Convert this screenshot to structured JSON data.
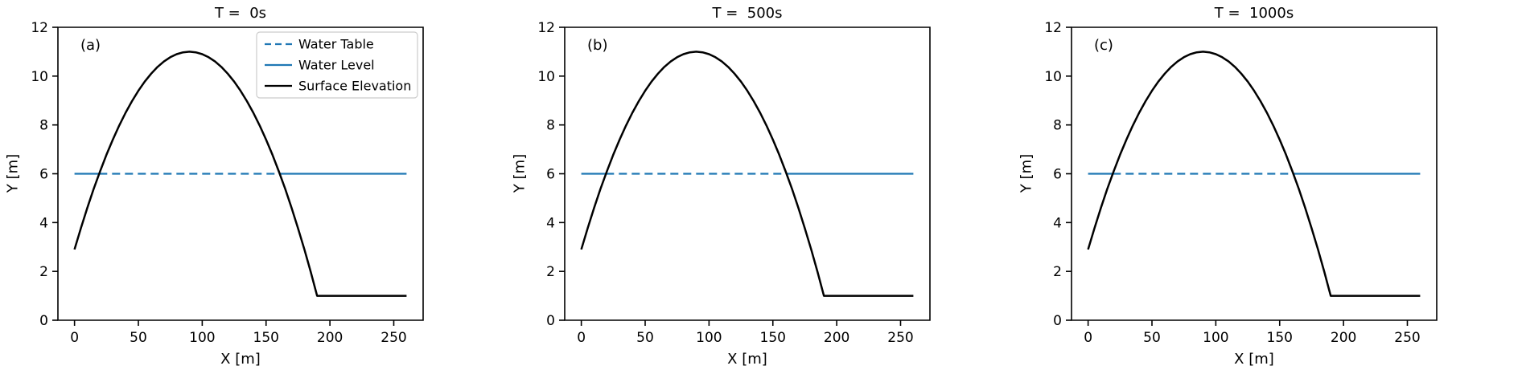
{
  "style": {
    "background": "#ffffff",
    "axis_color": "#000000",
    "water_color": "#1f77b4",
    "surface_color": "#000000",
    "legend_edge_color": "#cccccc"
  },
  "legend": {
    "items": [
      {
        "label": "Water Table",
        "color": "#1f77b4",
        "style": "dashed"
      },
      {
        "label": "Water Level",
        "color": "#1f77b4",
        "style": "solid"
      },
      {
        "label": "Surface Elevation",
        "color": "#000000",
        "style": "solid"
      }
    ]
  },
  "chart_data": [
    {
      "type": "line",
      "title": "T =  0s",
      "panel_label": "(a)",
      "xlabel": "X [m]",
      "ylabel": "Y [m]",
      "xlim": [
        -13,
        273
      ],
      "ylim": [
        0,
        12
      ],
      "xticks": [
        0,
        50,
        100,
        150,
        200,
        250
      ],
      "yticks": [
        0,
        2,
        4,
        6,
        8,
        10,
        12
      ],
      "show_legend": true,
      "legend_position": "upper right",
      "grid": false,
      "series": [
        {
          "name": "Water Table",
          "color": "#1f77b4",
          "style": "dashed",
          "width": 2.2,
          "segments": [
            {
              "x": [
                19.3,
                160.7
              ],
              "y": [
                6,
                6
              ]
            }
          ]
        },
        {
          "name": "Water Level",
          "color": "#1f77b4",
          "style": "solid",
          "width": 2.2,
          "segments": [
            {
              "x": [
                0,
                19.3
              ],
              "y": [
                6,
                6
              ]
            },
            {
              "x": [
                160.7,
                260
              ],
              "y": [
                6,
                6
              ]
            }
          ]
        },
        {
          "name": "Surface Elevation",
          "color": "#000000",
          "style": "solid",
          "width": 2.5,
          "segments": [
            {
              "x": [
                0,
                5,
                10,
                15,
                20,
                25,
                30,
                35,
                40,
                45,
                50,
                55,
                60,
                65,
                70,
                75,
                80,
                85,
                90,
                95,
                100,
                105,
                110,
                115,
                120,
                125,
                130,
                135,
                140,
                145,
                150,
                155,
                160,
                165,
                170,
                175,
                180,
                185,
                190,
                260
              ],
              "y": [
                2.9,
                3.775,
                4.6,
                5.375,
                6.1,
                6.775,
                7.4,
                7.975,
                8.5,
                8.975,
                9.4,
                9.775,
                10.1,
                10.375,
                10.6,
                10.775,
                10.9,
                10.975,
                11,
                10.975,
                10.9,
                10.775,
                10.6,
                10.375,
                10.1,
                9.775,
                9.4,
                8.975,
                8.5,
                7.975,
                7.4,
                6.775,
                6.1,
                5.375,
                4.6,
                3.775,
                2.9,
                1.975,
                1,
                1
              ]
            }
          ]
        }
      ]
    },
    {
      "type": "line",
      "title": "T =  500s",
      "panel_label": "(b)",
      "xlabel": "X [m]",
      "ylabel": "Y [m]",
      "xlim": [
        -13,
        273
      ],
      "ylim": [
        0,
        12
      ],
      "xticks": [
        0,
        50,
        100,
        150,
        200,
        250
      ],
      "yticks": [
        0,
        2,
        4,
        6,
        8,
        10,
        12
      ],
      "show_legend": false,
      "grid": false,
      "series": [
        {
          "name": "Water Table",
          "color": "#1f77b4",
          "style": "dashed",
          "width": 2.2,
          "segments": [
            {
              "x": [
                19.3,
                160.7
              ],
              "y": [
                6,
                6
              ]
            }
          ]
        },
        {
          "name": "Water Level",
          "color": "#1f77b4",
          "style": "solid",
          "width": 2.2,
          "segments": [
            {
              "x": [
                0,
                19.3
              ],
              "y": [
                6,
                6
              ]
            },
            {
              "x": [
                160.7,
                260
              ],
              "y": [
                6,
                6
              ]
            }
          ]
        },
        {
          "name": "Surface Elevation",
          "color": "#000000",
          "style": "solid",
          "width": 2.5,
          "segments": [
            {
              "x": [
                0,
                5,
                10,
                15,
                20,
                25,
                30,
                35,
                40,
                45,
                50,
                55,
                60,
                65,
                70,
                75,
                80,
                85,
                90,
                95,
                100,
                105,
                110,
                115,
                120,
                125,
                130,
                135,
                140,
                145,
                150,
                155,
                160,
                165,
                170,
                175,
                180,
                185,
                190,
                260
              ],
              "y": [
                2.9,
                3.775,
                4.6,
                5.375,
                6.1,
                6.775,
                7.4,
                7.975,
                8.5,
                8.975,
                9.4,
                9.775,
                10.1,
                10.375,
                10.6,
                10.775,
                10.9,
                10.975,
                11,
                10.975,
                10.9,
                10.775,
                10.6,
                10.375,
                10.1,
                9.775,
                9.4,
                8.975,
                8.5,
                7.975,
                7.4,
                6.775,
                6.1,
                5.375,
                4.6,
                3.775,
                2.9,
                1.975,
                1,
                1
              ]
            }
          ]
        }
      ]
    },
    {
      "type": "line",
      "title": "T =  1000s",
      "panel_label": "(c)",
      "xlabel": "X [m]",
      "ylabel": "Y [m]",
      "xlim": [
        -13,
        273
      ],
      "ylim": [
        0,
        12
      ],
      "xticks": [
        0,
        50,
        100,
        150,
        200,
        250
      ],
      "yticks": [
        0,
        2,
        4,
        6,
        8,
        10,
        12
      ],
      "show_legend": false,
      "grid": false,
      "series": [
        {
          "name": "Water Table",
          "color": "#1f77b4",
          "style": "dashed",
          "width": 2.2,
          "segments": [
            {
              "x": [
                19.3,
                160.7
              ],
              "y": [
                6,
                6
              ]
            }
          ]
        },
        {
          "name": "Water Level",
          "color": "#1f77b4",
          "style": "solid",
          "width": 2.2,
          "segments": [
            {
              "x": [
                0,
                19.3
              ],
              "y": [
                6,
                6
              ]
            },
            {
              "x": [
                160.7,
                260
              ],
              "y": [
                6,
                6
              ]
            }
          ]
        },
        {
          "name": "Surface Elevation",
          "color": "#000000",
          "style": "solid",
          "width": 2.5,
          "segments": [
            {
              "x": [
                0,
                5,
                10,
                15,
                20,
                25,
                30,
                35,
                40,
                45,
                50,
                55,
                60,
                65,
                70,
                75,
                80,
                85,
                90,
                95,
                100,
                105,
                110,
                115,
                120,
                125,
                130,
                135,
                140,
                145,
                150,
                155,
                160,
                165,
                170,
                175,
                180,
                185,
                190,
                260
              ],
              "y": [
                2.9,
                3.775,
                4.6,
                5.375,
                6.1,
                6.775,
                7.4,
                7.975,
                8.5,
                8.975,
                9.4,
                9.775,
                10.1,
                10.375,
                10.6,
                10.775,
                10.9,
                10.975,
                11,
                10.975,
                10.9,
                10.775,
                10.6,
                10.375,
                10.1,
                9.775,
                9.4,
                8.975,
                8.5,
                7.975,
                7.4,
                6.775,
                6.1,
                5.375,
                4.6,
                3.775,
                2.9,
                1.975,
                1,
                1
              ]
            }
          ]
        }
      ]
    }
  ]
}
